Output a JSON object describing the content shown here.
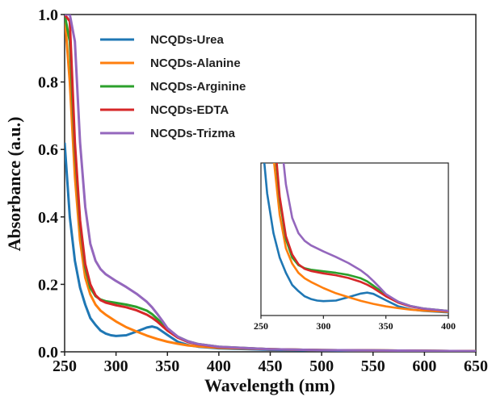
{
  "chart_data": [
    {
      "type": "line",
      "panel": "main",
      "xlabel": "Wavelength (nm)",
      "ylabel": "Absorbance (a.u.)",
      "xlim": [
        250,
        650
      ],
      "ylim": [
        0,
        1.0
      ],
      "x_ticks": [
        "250",
        "300",
        "350",
        "400",
        "450",
        "500",
        "550",
        "600",
        "650"
      ],
      "y_ticks": [
        "0.0",
        "0.2",
        "0.4",
        "0.6",
        "0.8",
        "1.0"
      ],
      "grid": false,
      "legend_position": "top-left",
      "series": [
        {
          "name": "NCQDs-Urea",
          "color": "#1f77b4",
          "x": [
            250,
            255,
            260,
            265,
            270,
            275,
            280,
            285,
            290,
            295,
            300,
            310,
            320,
            330,
            335,
            340,
            350,
            360,
            370,
            380,
            400,
            450,
            500,
            550,
            600,
            650
          ],
          "y": [
            0.62,
            0.4,
            0.27,
            0.19,
            0.14,
            0.1,
            0.08,
            0.063,
            0.054,
            0.049,
            0.047,
            0.049,
            0.06,
            0.072,
            0.075,
            0.071,
            0.05,
            0.03,
            0.02,
            0.015,
            0.01,
            0.006,
            0.004,
            0.003,
            0.002,
            0.002
          ]
        },
        {
          "name": "NCQDs-Alanine",
          "color": "#ff7f0e",
          "x": [
            250,
            255,
            260,
            265,
            270,
            275,
            280,
            285,
            290,
            300,
            310,
            320,
            330,
            340,
            350,
            360,
            370,
            380,
            400,
            450,
            500,
            550,
            600,
            650
          ],
          "y": [
            1.0,
            0.8,
            0.52,
            0.33,
            0.22,
            0.17,
            0.14,
            0.122,
            0.11,
            0.09,
            0.073,
            0.06,
            0.048,
            0.038,
            0.03,
            0.024,
            0.019,
            0.016,
            0.012,
            0.008,
            0.005,
            0.004,
            0.003,
            0.002
          ]
        },
        {
          "name": "NCQDs-Arginine",
          "color": "#2ca02c",
          "x": [
            250,
            255,
            260,
            265,
            270,
            275,
            280,
            285,
            290,
            300,
            310,
            320,
            330,
            335,
            340,
            350,
            360,
            370,
            380,
            400,
            450,
            500,
            550,
            600,
            650
          ],
          "y": [
            1.0,
            0.92,
            0.6,
            0.38,
            0.25,
            0.19,
            0.165,
            0.155,
            0.15,
            0.145,
            0.14,
            0.133,
            0.122,
            0.112,
            0.098,
            0.068,
            0.045,
            0.031,
            0.023,
            0.015,
            0.008,
            0.005,
            0.004,
            0.003,
            0.002
          ]
        },
        {
          "name": "NCQDs-EDTA",
          "color": "#d62728",
          "x": [
            250,
            255,
            260,
            265,
            270,
            275,
            280,
            285,
            290,
            300,
            310,
            320,
            330,
            335,
            340,
            350,
            360,
            370,
            380,
            400,
            450,
            500,
            550,
            600,
            650
          ],
          "y": [
            1.0,
            0.98,
            0.62,
            0.39,
            0.26,
            0.2,
            0.168,
            0.153,
            0.146,
            0.138,
            0.132,
            0.123,
            0.11,
            0.101,
            0.09,
            0.063,
            0.042,
            0.029,
            0.022,
            0.014,
            0.008,
            0.005,
            0.004,
            0.003,
            0.002
          ]
        },
        {
          "name": "NCQDs-Trizma",
          "color": "#9467bd",
          "x": [
            250,
            255,
            260,
            265,
            270,
            275,
            280,
            285,
            290,
            300,
            310,
            320,
            330,
            335,
            340,
            345,
            350,
            360,
            370,
            380,
            400,
            450,
            500,
            550,
            600,
            650
          ],
          "y": [
            1.0,
            1.0,
            0.92,
            0.62,
            0.43,
            0.32,
            0.27,
            0.245,
            0.23,
            0.21,
            0.192,
            0.172,
            0.148,
            0.132,
            0.113,
            0.092,
            0.07,
            0.045,
            0.031,
            0.023,
            0.015,
            0.008,
            0.005,
            0.004,
            0.003,
            0.002
          ]
        }
      ]
    },
    {
      "type": "line",
      "panel": "inset",
      "xlim": [
        250,
        400
      ],
      "ylim": [
        0,
        0.5
      ],
      "x_ticks": [
        "250",
        "300",
        "350",
        "400"
      ],
      "y_ticks": [],
      "note_series": "same five series as main panel"
    }
  ]
}
